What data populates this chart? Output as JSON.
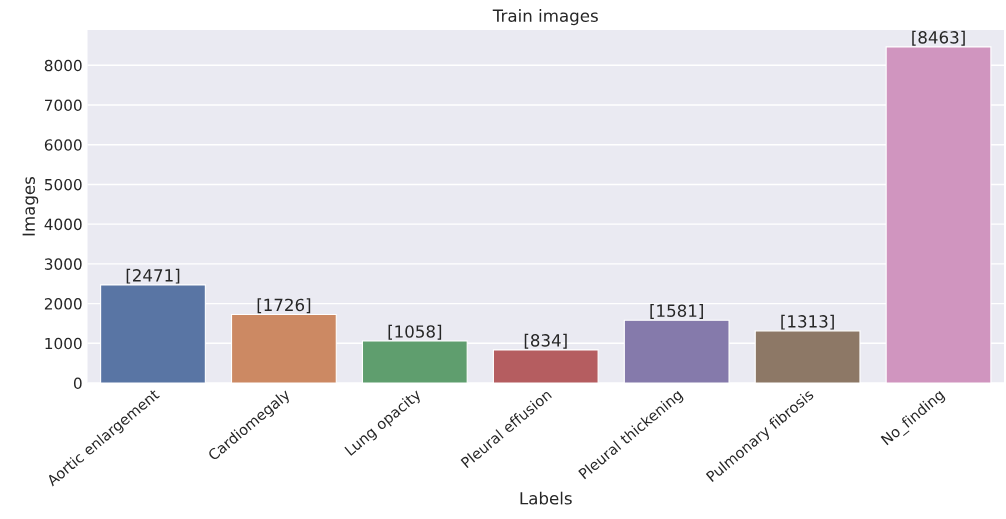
{
  "chart_data": {
    "type": "bar",
    "title": "Train images",
    "xlabel": "Labels",
    "ylabel": "Images",
    "categories": [
      "Aortic enlargement",
      "Cardiomegaly",
      "Lung opacity",
      "Pleural effusion",
      "Pleural thickening",
      "Pulmonary fibrosis",
      "No_finding"
    ],
    "values": [
      2471,
      1726,
      1058,
      834,
      1581,
      1313,
      8463
    ],
    "colors": [
      "#5975a4",
      "#cc8963",
      "#5f9e6e",
      "#b55d60",
      "#857aab",
      "#8d7866",
      "#d095bf"
    ],
    "value_labels": [
      "[2471]",
      "[1726]",
      "[1058]",
      "[834]",
      "[1581]",
      "[1313]",
      "[8463]"
    ],
    "ylim": [
      0,
      8886
    ],
    "yticks": [
      0,
      1000,
      2000,
      3000,
      4000,
      5000,
      6000,
      7000,
      8000
    ],
    "grid": "y"
  }
}
